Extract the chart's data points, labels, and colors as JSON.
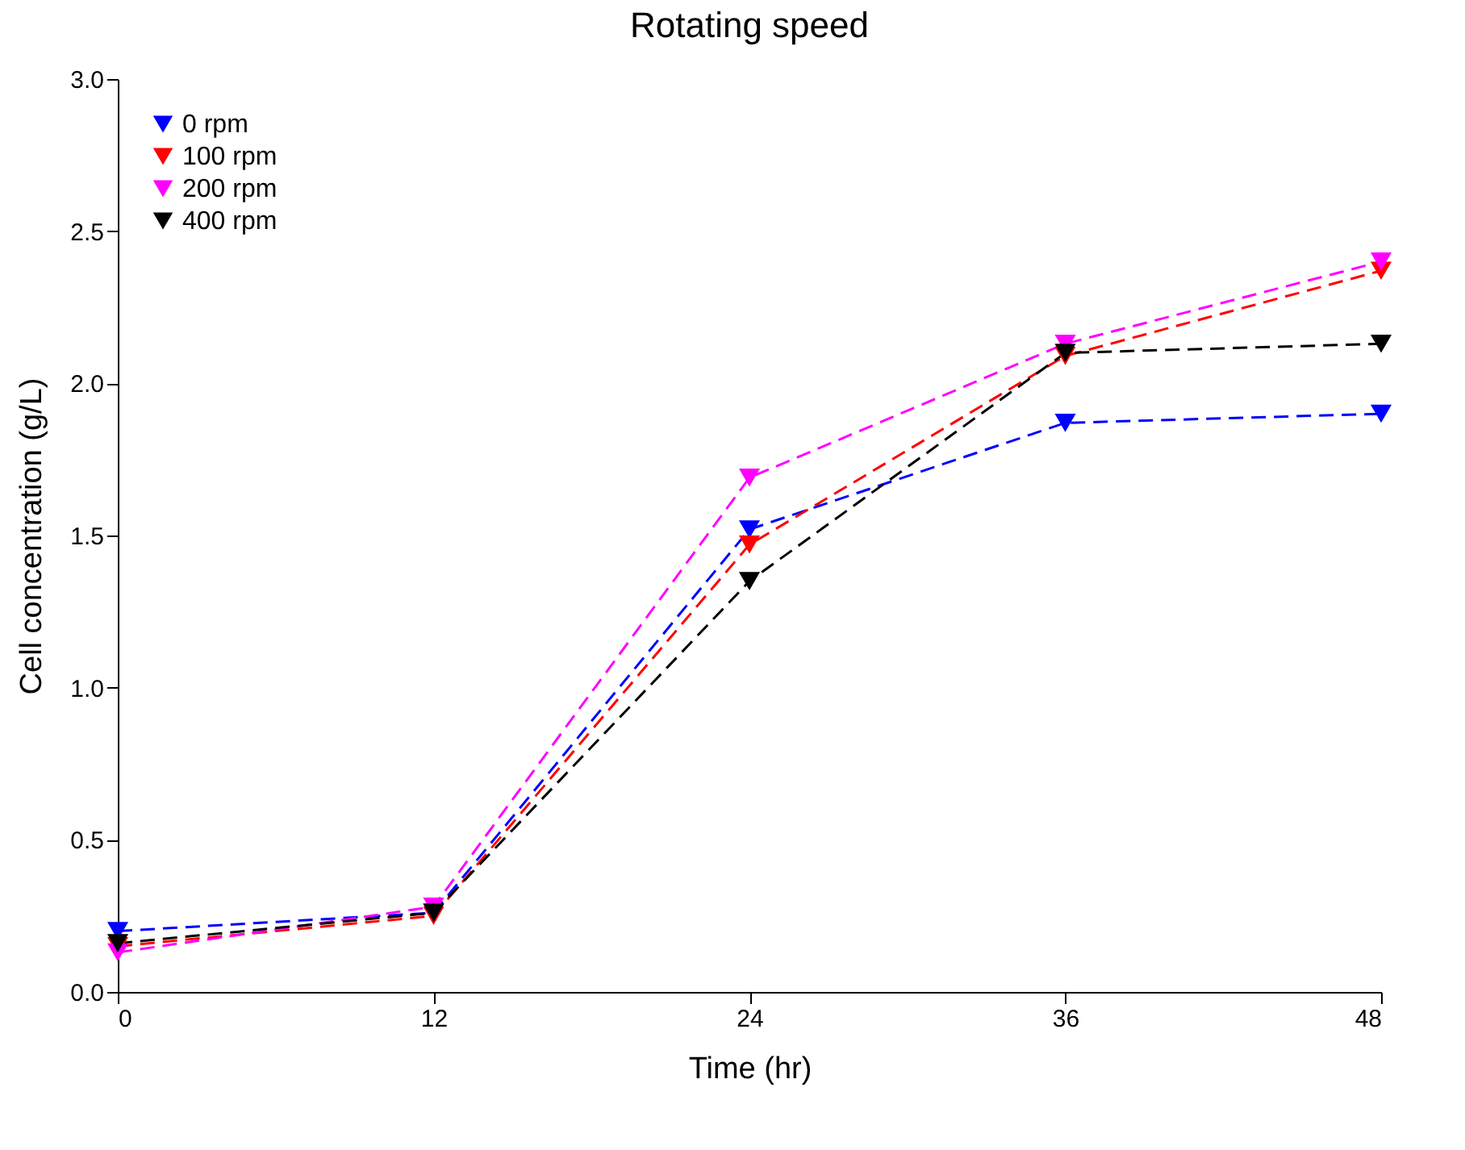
{
  "chart_data": {
    "type": "line",
    "title": "Rotating speed",
    "xlabel": "Time (hr)",
    "ylabel": "Cell concentration (g/L)",
    "x": [
      0,
      12,
      24,
      36,
      48
    ],
    "series": [
      {
        "name": "0 rpm",
        "color": "#0000ff",
        "values": [
          0.2,
          0.26,
          1.52,
          1.87,
          1.9
        ]
      },
      {
        "name": "100 rpm",
        "color": "#ff0000",
        "values": [
          0.15,
          0.25,
          1.47,
          2.09,
          2.37
        ]
      },
      {
        "name": "200 rpm",
        "color": "#ff00ff",
        "values": [
          0.13,
          0.28,
          1.69,
          2.13,
          2.4
        ]
      },
      {
        "name": "400 rpm",
        "color": "#000000",
        "values": [
          0.16,
          0.26,
          1.35,
          2.1,
          2.13
        ]
      }
    ],
    "xlim": [
      0,
      48
    ],
    "xticks": [
      0,
      12,
      24,
      36,
      48
    ],
    "ylim": [
      0,
      3
    ],
    "yticks": [
      {
        "value": 0,
        "label": "0.0"
      },
      {
        "value": 0.5,
        "label": "0.5"
      },
      {
        "value": 1,
        "label": "1.0"
      },
      {
        "value": 1.5,
        "label": "1.5"
      },
      {
        "value": 2,
        "label": "2.0"
      },
      {
        "value": 2.5,
        "label": "2.5"
      },
      {
        "value": 3,
        "label": "3.0"
      }
    ],
    "grid": false,
    "legend": "top left",
    "marker": "triangle-down",
    "line_style": "dashed"
  }
}
